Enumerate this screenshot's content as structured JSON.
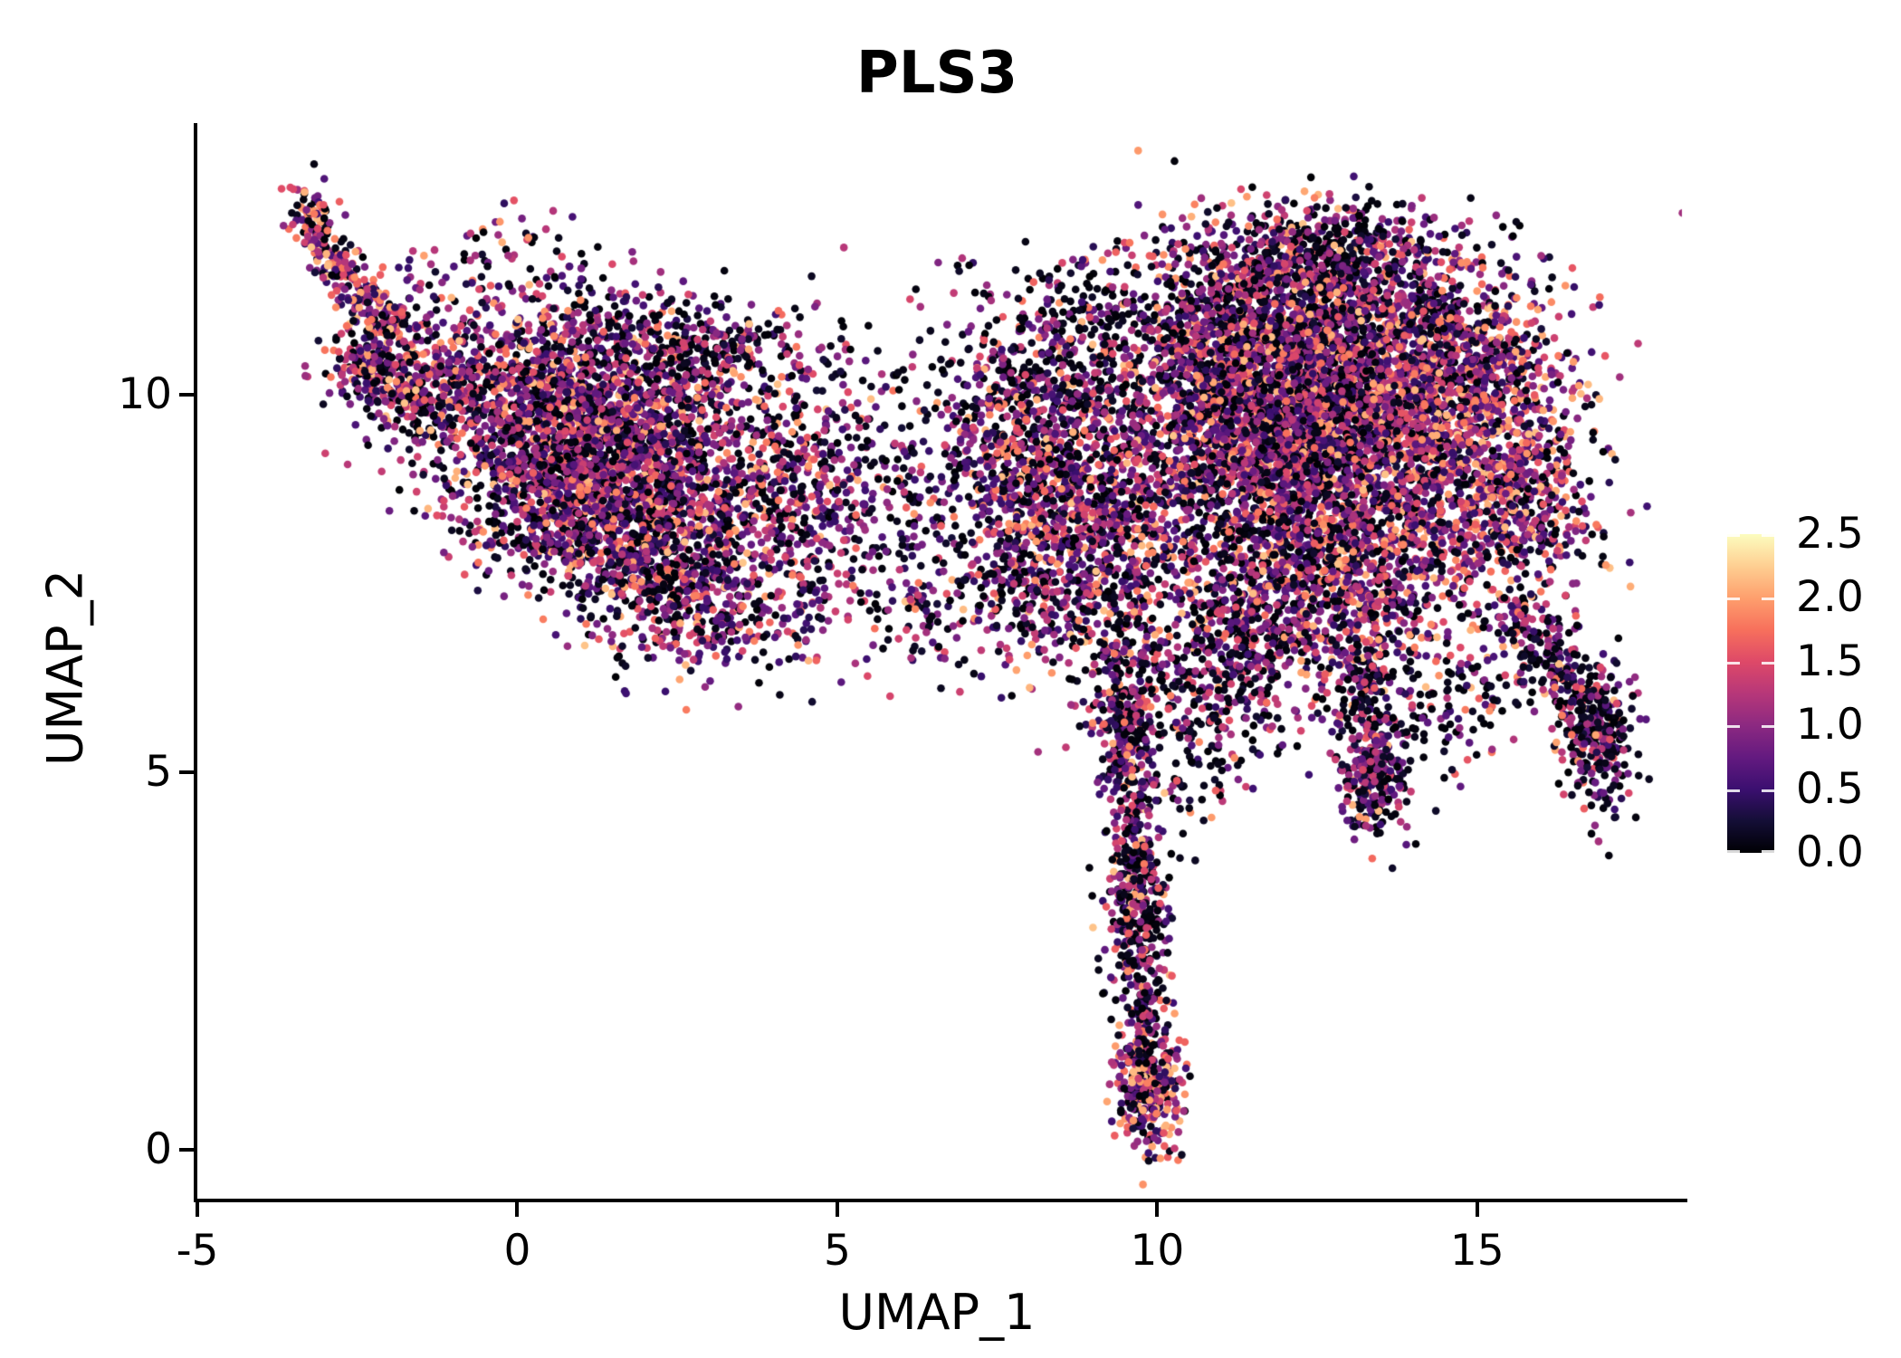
{
  "figure": {
    "background": "#ffffff"
  },
  "chart_data": {
    "type": "scatter",
    "title": "PLS3",
    "xlabel": "UMAP_1",
    "ylabel": "UMAP_2",
    "xlim": [
      -5,
      18.2
    ],
    "ylim": [
      -0.65,
      13.6
    ],
    "xticks": [
      -5,
      0,
      5,
      10,
      15
    ],
    "xtick_labels": [
      "-5",
      "0",
      "5",
      "10",
      "15"
    ],
    "yticks": [
      0,
      5,
      10
    ],
    "ytick_labels": [
      "0",
      "5",
      "10"
    ],
    "grid": false,
    "legend_position": "right",
    "colorbar": {
      "vmin": 0,
      "vmax": 2.5,
      "tick_values": [
        2.5,
        2.0,
        1.5,
        1.0,
        0.5,
        0.0
      ],
      "tick_labels": [
        "2.5",
        "2.0",
        "1.5",
        "1.0",
        "0.5",
        "0.0"
      ],
      "colormap": "magma",
      "stops": [
        "#000004",
        "#140e36",
        "#3b0f70",
        "#641a80",
        "#8c2981",
        "#b73779",
        "#de4968",
        "#f7705c",
        "#fe9f6d",
        "#fecf92",
        "#fcfdbf"
      ]
    },
    "point_style": {
      "radius_px": 4.3
    },
    "seed": 20240613,
    "value_bands": {
      "zero": [
        0,
        0.3
      ],
      "mid": [
        0.35,
        1.5
      ],
      "high": [
        1.5,
        2.2
      ]
    },
    "value_mixes": {
      "default": [
        0.32,
        0.52,
        0.16
      ],
      "warm": [
        0.2,
        0.5,
        0.3
      ],
      "dark": [
        0.55,
        0.38,
        0.07
      ],
      "cool": [
        0.45,
        0.45,
        0.1
      ],
      "hot": [
        0.08,
        0.37,
        0.55
      ]
    },
    "clusters": [
      {
        "cx": -0.2,
        "cy": 11.8,
        "sx": 0.85,
        "sy": 0.33,
        "rot": 0,
        "n": 70,
        "mix": "default"
      },
      {
        "cx": -1.6,
        "cy": 10.25,
        "sx": 0.55,
        "sy": 0.4,
        "rot": 20,
        "n": 180,
        "mix": "default"
      },
      {
        "cx": 0.6,
        "cy": 9.7,
        "sx": 1.1,
        "sy": 0.78,
        "rot": -12,
        "n": 1450,
        "mix": "default"
      },
      {
        "cx": 2.2,
        "cy": 9.0,
        "sx": 1.25,
        "sy": 0.85,
        "rot": -18,
        "n": 1350,
        "mix": "default"
      },
      {
        "cx": 1.1,
        "cy": 8.4,
        "sx": 1.0,
        "sy": 0.6,
        "rot": -10,
        "n": 650,
        "mix": "default"
      },
      {
        "cx": 2.9,
        "cy": 7.25,
        "sx": 0.85,
        "sy": 0.5,
        "rot": -8,
        "n": 400,
        "mix": "default"
      },
      {
        "cx": 2.8,
        "cy": 10.6,
        "sx": 1.15,
        "sy": 0.34,
        "rot": -4,
        "n": 330,
        "mix": "dark"
      },
      {
        "cx": 4.5,
        "cy": 8.7,
        "sx": 0.7,
        "sy": 0.85,
        "rot": 0,
        "n": 330,
        "mix": "default"
      },
      {
        "cx": 5.9,
        "cy": 8.8,
        "sx": 0.8,
        "sy": 1.0,
        "rot": 0,
        "n": 210,
        "mix": "dark"
      },
      {
        "cx": 6.3,
        "cy": 7.1,
        "sx": 0.5,
        "sy": 0.3,
        "rot": 0,
        "n": 60,
        "mix": "default"
      },
      {
        "cx": 8.3,
        "cy": 8.1,
        "sx": 0.78,
        "sy": 0.82,
        "rot": 0,
        "n": 850,
        "mix": "default"
      },
      {
        "cx": 8.0,
        "cy": 9.4,
        "sx": 0.8,
        "sy": 0.6,
        "rot": 0,
        "n": 480,
        "mix": "default"
      },
      {
        "cx": 8.4,
        "cy": 10.5,
        "sx": 0.9,
        "sy": 0.5,
        "rot": 0,
        "n": 190,
        "mix": "dark"
      },
      {
        "cx": 9.6,
        "cy": 8.6,
        "sx": 0.5,
        "sy": 0.9,
        "rot": 0,
        "n": 300,
        "mix": "default"
      },
      {
        "cx": 9.1,
        "cy": 11.0,
        "sx": 1.0,
        "sy": 0.5,
        "rot": 0,
        "n": 200,
        "mix": "dark"
      },
      {
        "cx": 9.6,
        "cy": 3.25,
        "sx": 0.3,
        "sy": 0.5,
        "rot": 0,
        "n": 140,
        "mix": "cool"
      },
      {
        "cx": 9.5,
        "cy": 5.5,
        "sx": 0.33,
        "sy": 0.5,
        "rot": 0,
        "n": 100,
        "mix": "cool"
      },
      {
        "cx": 9.87,
        "cy": 0.8,
        "sx": 0.27,
        "sy": 0.42,
        "rot": 0,
        "n": 260,
        "mix": "warm"
      },
      {
        "cx": 10.6,
        "cy": 5.9,
        "sx": 0.55,
        "sy": 0.85,
        "rot": 0,
        "n": 210,
        "mix": "dark"
      },
      {
        "cx": 12.4,
        "cy": 9.4,
        "sx": 1.45,
        "sy": 1.2,
        "rot": 0,
        "n": 3100,
        "mix": "default"
      },
      {
        "cx": 12.2,
        "cy": 10.1,
        "sx": 0.9,
        "sy": 0.7,
        "rot": 0,
        "n": 800,
        "mix": "default"
      },
      {
        "cx": 12.3,
        "cy": 11.3,
        "sx": 1.3,
        "sy": 0.55,
        "rot": 0,
        "n": 800,
        "mix": "default"
      },
      {
        "cx": 12.6,
        "cy": 12.0,
        "sx": 0.8,
        "sy": 0.33,
        "rot": 0,
        "n": 230,
        "mix": "dark"
      },
      {
        "cx": 10.9,
        "cy": 10.0,
        "sx": 0.5,
        "sy": 0.9,
        "rot": 0,
        "n": 420,
        "mix": "default"
      },
      {
        "cx": 14.8,
        "cy": 9.3,
        "sx": 0.9,
        "sy": 1.0,
        "rot": 0,
        "n": 850,
        "mix": "warm"
      },
      {
        "cx": 15.75,
        "cy": 8.7,
        "sx": 0.5,
        "sy": 0.85,
        "rot": 0,
        "n": 330,
        "mix": "warm"
      },
      {
        "cx": 14.6,
        "cy": 10.6,
        "sx": 0.8,
        "sy": 0.5,
        "rot": 0,
        "n": 320,
        "mix": "default"
      },
      {
        "cx": 12.5,
        "cy": 7.4,
        "sx": 1.2,
        "sy": 0.6,
        "rot": 0,
        "n": 650,
        "mix": "default"
      },
      {
        "cx": 11.3,
        "cy": 6.5,
        "sx": 0.6,
        "sy": 0.6,
        "rot": 0,
        "n": 240,
        "mix": "dark"
      },
      {
        "cx": 13.4,
        "cy": 4.85,
        "sx": 0.3,
        "sy": 0.38,
        "rot": 0,
        "n": 110,
        "mix": "cool"
      },
      {
        "cx": 14.6,
        "cy": 6.0,
        "sx": 0.7,
        "sy": 0.5,
        "rot": 0,
        "n": 140,
        "mix": "dark"
      },
      {
        "cx": 16.9,
        "cy": 5.5,
        "sx": 0.28,
        "sy": 0.5,
        "rot": 0,
        "n": 190,
        "mix": "cool"
      }
    ],
    "strands": [
      {
        "path": [
          [
            -3.35,
            12.65
          ],
          [
            -3.0,
            11.9
          ],
          [
            -2.45,
            11.25
          ],
          [
            -1.8,
            10.85
          ]
        ],
        "w": 0.16,
        "n": 330,
        "mix": "warm"
      },
      {
        "path": [
          [
            -2.75,
            10.55
          ],
          [
            -1.9,
            10.15
          ],
          [
            -0.9,
            9.9
          ]
        ],
        "w": 0.25,
        "n": 240,
        "mix": "default"
      },
      {
        "path": [
          [
            9.42,
            6.95
          ],
          [
            9.5,
            5.8
          ],
          [
            9.6,
            4.6
          ],
          [
            9.66,
            3.4
          ],
          [
            9.76,
            2.2
          ],
          [
            9.82,
            1.2
          ],
          [
            9.72,
            0.5
          ]
        ],
        "w": 0.2,
        "n": 620,
        "mix": "cool"
      },
      {
        "path": [
          [
            13.18,
            6.7
          ],
          [
            13.3,
            5.7
          ],
          [
            13.42,
            4.55
          ]
        ],
        "w": 0.28,
        "n": 260,
        "mix": "cool"
      },
      {
        "path": [
          [
            15.55,
            7.15
          ],
          [
            16.15,
            6.45
          ],
          [
            16.7,
            5.85
          ],
          [
            17.0,
            5.3
          ]
        ],
        "w": 0.26,
        "n": 300,
        "mix": "dark"
      }
    ]
  }
}
